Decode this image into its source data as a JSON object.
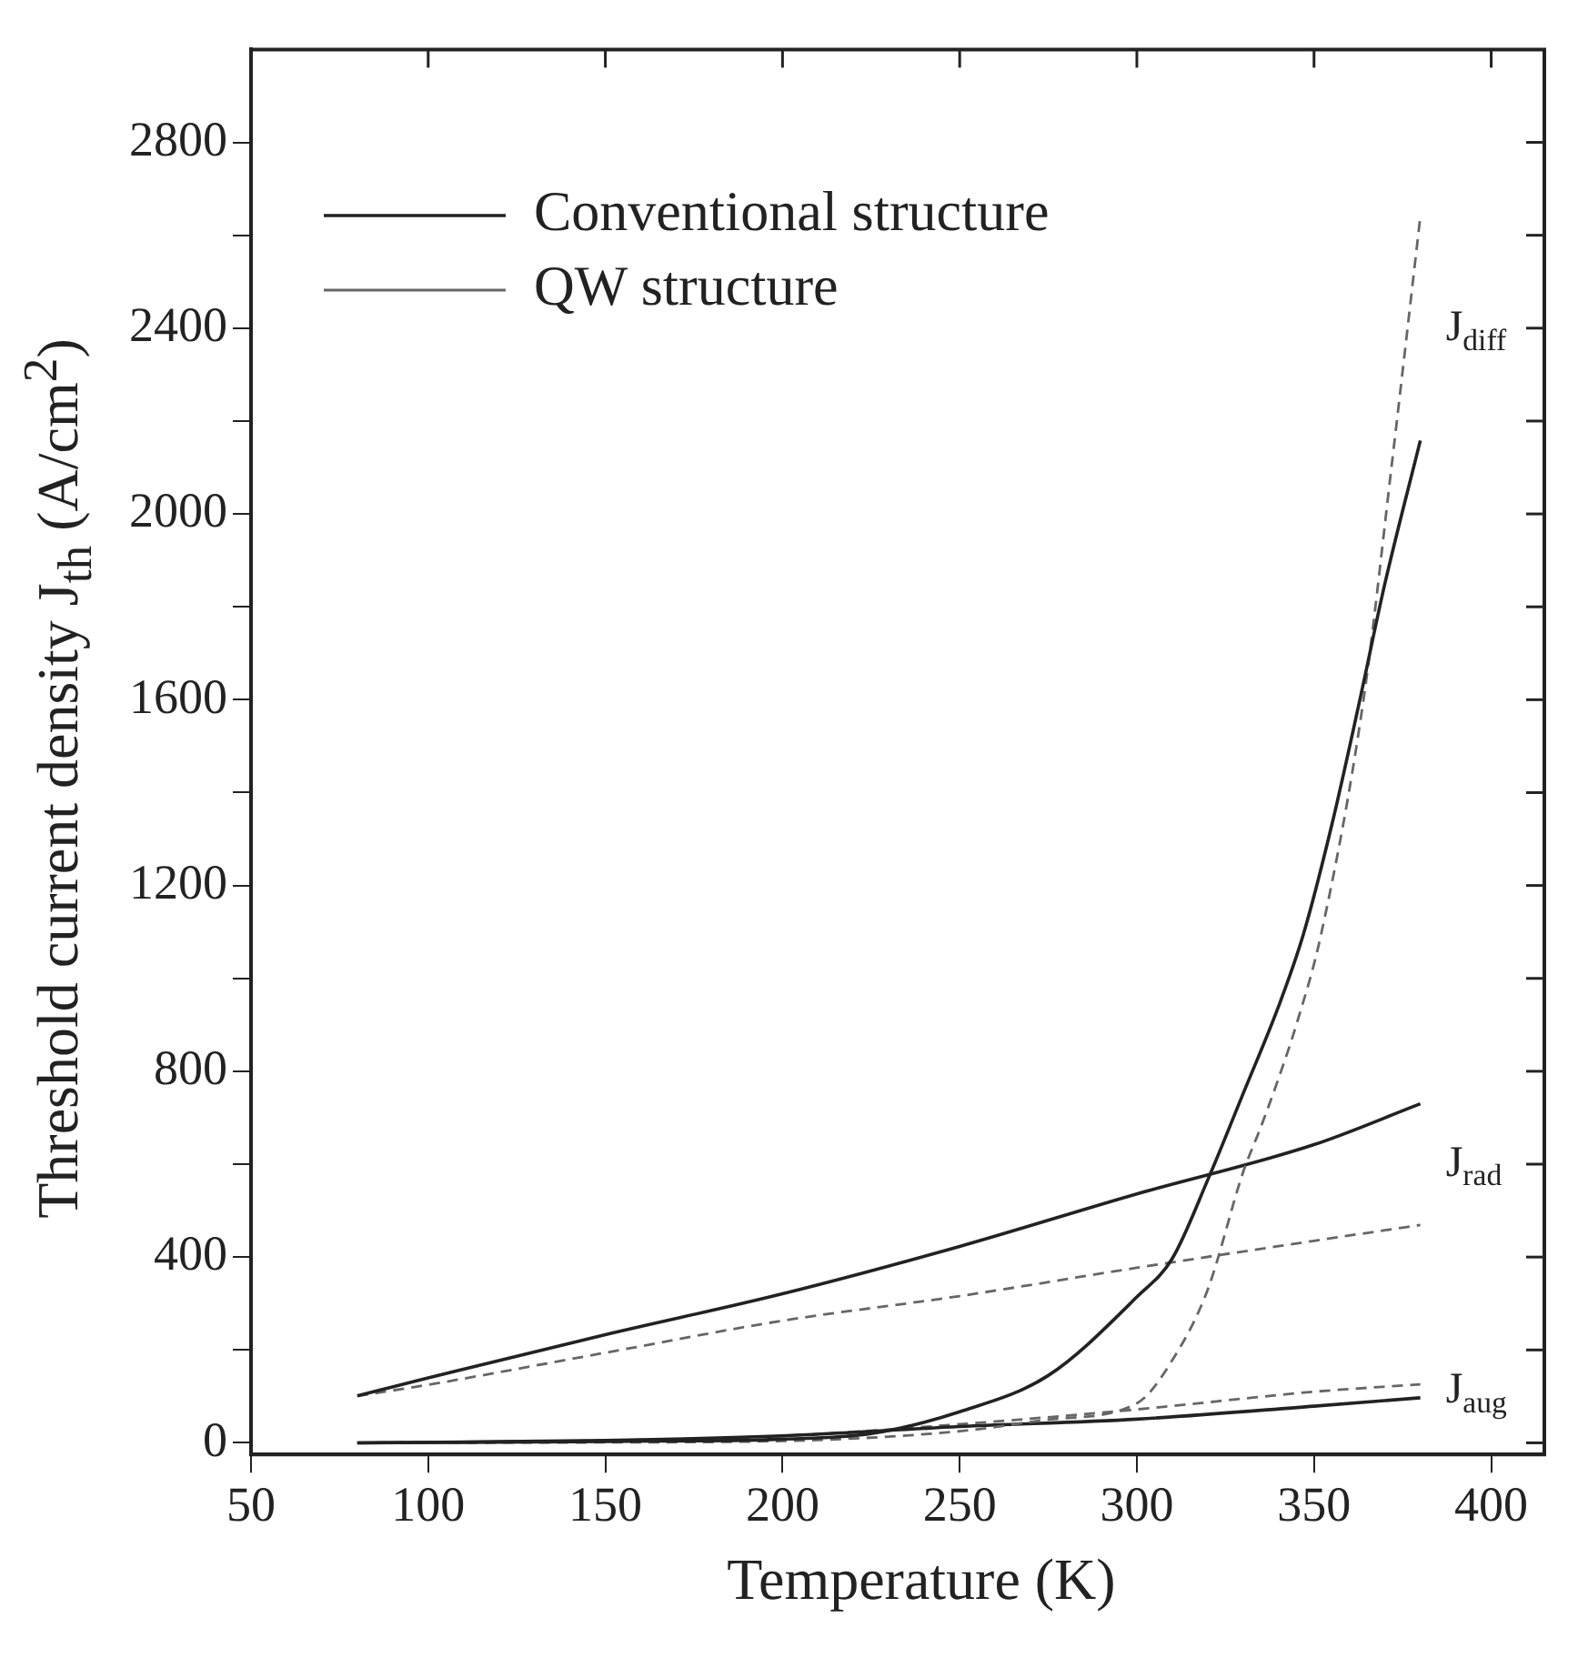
{
  "chart_data": {
    "type": "line",
    "xlabel": "Temperature  (K)",
    "ylabel": "Threshold current density J$_{th}$ (A/cm$^{2}$)",
    "xlim": [
      50,
      415
    ],
    "xticks": [
      50,
      100,
      150,
      200,
      250,
      300,
      350,
      400
    ],
    "ylim": [
      -25,
      3000
    ],
    "yticks": [
      0,
      {
        "value": 200,
        "label": null
      },
      400,
      {
        "value": 600,
        "label": null
      },
      800,
      {
        "value": 1000,
        "label": null
      },
      1200,
      {
        "value": 1400,
        "label": null
      },
      1600,
      {
        "value": 1800,
        "label": null
      },
      2000,
      {
        "value": 2200,
        "label": null
      },
      2400,
      {
        "value": 2600,
        "label": null
      },
      2800
    ],
    "grid": false,
    "legend": "top left",
    "marker": "none",
    "series": [
      {
        "color": "#222222",
        "line_style": "solid",
        "x": [
          80,
          150,
          200,
          225,
          250,
          275,
          300,
          310,
          320,
          330,
          340,
          347,
          355,
          363,
          370,
          380
        ],
        "values": [
          0,
          3,
          8,
          20,
          67,
          145,
          314,
          397,
          566,
          752,
          940,
          1095,
          1330,
          1602,
          1850,
          2158
        ]
      },
      {
        "color": "#666666",
        "line_style": "dashed",
        "x": [
          80,
          150,
          200,
          250,
          275,
          300,
          310,
          320,
          330,
          335,
          340,
          345,
          352,
          364,
          372,
          380
        ],
        "values": [
          0,
          1,
          4,
          25,
          50,
          85,
          178,
          330,
          583,
          680,
          785,
          900,
          1095,
          1602,
          2110,
          2640
        ]
      },
      {
        "name": "Conventional structure",
        "color": "#222222",
        "line_style": "solid",
        "x": [
          80,
          100,
          150,
          200,
          250,
          300,
          350,
          380
        ],
        "values": [
          101,
          140,
          233,
          321,
          423,
          536,
          642,
          730
        ]
      },
      {
        "name": "QW structure",
        "color": "#666666",
        "line_style": "dashed",
        "x": [
          80,
          100,
          150,
          200,
          250,
          300,
          350,
          380
        ],
        "values": [
          101,
          125,
          194,
          263,
          316,
          377,
          435,
          469
        ]
      },
      {
        "color": "#222222",
        "line_style": "solid",
        "x": [
          80,
          150,
          200,
          250,
          300,
          350,
          380
        ],
        "values": [
          0,
          5,
          15,
          35,
          51,
          79,
          97
        ]
      },
      {
        "color": "#666666",
        "line_style": "dashed",
        "x": [
          80,
          150,
          200,
          250,
          300,
          350,
          380
        ],
        "values": [
          0,
          5,
          15,
          40,
          72,
          110,
          126
        ]
      }
    ],
    "annotations": [
      "J$_{diff}$",
      "J$_{rad}$",
      "J$_{aug}$"
    ]
  }
}
